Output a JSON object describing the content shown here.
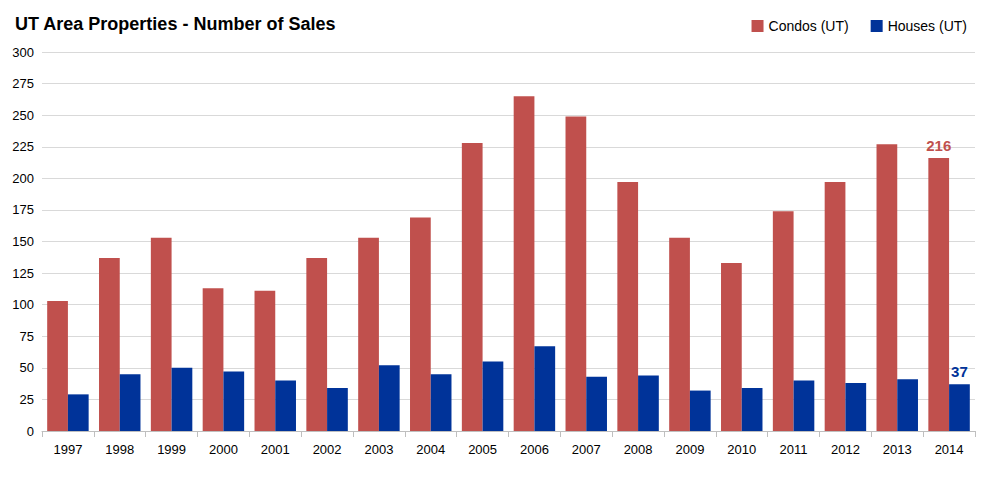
{
  "chart_data": {
    "type": "bar",
    "title": "UT Area Properties - Number of Sales",
    "categories": [
      "1997",
      "1998",
      "1999",
      "2000",
      "2001",
      "2002",
      "2003",
      "2004",
      "2005",
      "2006",
      "2007",
      "2008",
      "2009",
      "2010",
      "2011",
      "2012",
      "2013",
      "2014"
    ],
    "series": [
      {
        "name": "Condos (UT)",
        "color": "#c0504d",
        "values": [
          103,
          137,
          153,
          113,
          111,
          137,
          153,
          169,
          228,
          265,
          249,
          197,
          153,
          133,
          174,
          197,
          227,
          216
        ],
        "value_labels": [
          null,
          null,
          null,
          null,
          null,
          null,
          null,
          null,
          null,
          null,
          null,
          null,
          null,
          null,
          null,
          null,
          null,
          "216"
        ]
      },
      {
        "name": "Houses (UT)",
        "color": "#003399",
        "values": [
          29,
          45,
          50,
          47,
          40,
          34,
          52,
          45,
          55,
          67,
          43,
          44,
          32,
          34,
          40,
          38,
          41,
          37
        ],
        "value_labels": [
          null,
          null,
          null,
          null,
          null,
          null,
          null,
          null,
          null,
          null,
          null,
          null,
          null,
          null,
          null,
          null,
          null,
          "37"
        ]
      }
    ],
    "ylim": [
      0,
      300
    ],
    "yticks": [
      0,
      25,
      50,
      75,
      100,
      125,
      150,
      175,
      200,
      225,
      250,
      275,
      300
    ],
    "grid": true,
    "legend": "top-right"
  }
}
